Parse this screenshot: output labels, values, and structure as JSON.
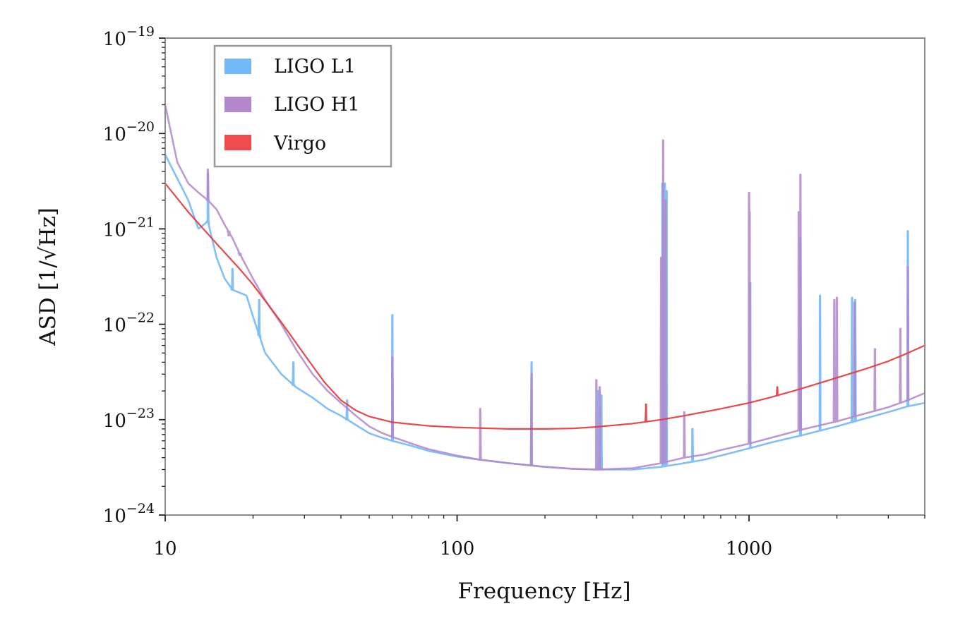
{
  "chart_data": {
    "type": "line",
    "title": "",
    "xlabel": "Frequency [Hz]",
    "ylabel": "ASD [1/√Hz]",
    "x_scale": "log",
    "y_scale": "log",
    "xlim": [
      10,
      4000
    ],
    "ylim": [
      1e-24,
      1e-19
    ],
    "x_ticks": [
      {
        "value": 10,
        "label": "10"
      },
      {
        "value": 100,
        "label": "100"
      },
      {
        "value": 1000,
        "label": "1000"
      }
    ],
    "y_ticks": [
      {
        "value": 1e-24,
        "base": "10",
        "exp": "−24"
      },
      {
        "value": 1e-23,
        "base": "10",
        "exp": "−23"
      },
      {
        "value": 1e-22,
        "base": "10",
        "exp": "−22"
      },
      {
        "value": 1e-21,
        "base": "10",
        "exp": "−21"
      },
      {
        "value": 1e-20,
        "base": "10",
        "exp": "−20"
      },
      {
        "value": 1e-19,
        "base": "10",
        "exp": "−19"
      }
    ],
    "grid": false,
    "legend_position": "top-left",
    "series": [
      {
        "name": "LIGO L1",
        "color": "#73b8f7",
        "base": [
          [
            10,
            6e-21
          ],
          [
            12,
            2e-21
          ],
          [
            13,
            1e-21
          ],
          [
            14,
            1.2e-21
          ],
          [
            15,
            5e-22
          ],
          [
            16,
            3e-22
          ],
          [
            17,
            2.3e-22
          ],
          [
            19,
            2e-22
          ],
          [
            20,
            1.2e-22
          ],
          [
            22,
            5e-23
          ],
          [
            25,
            3e-23
          ],
          [
            28,
            2.2e-23
          ],
          [
            32,
            1.7e-23
          ],
          [
            36,
            1.3e-23
          ],
          [
            40,
            1.1e-23
          ],
          [
            45,
            8.8e-24
          ],
          [
            50,
            7.2e-24
          ],
          [
            55,
            6.5e-24
          ],
          [
            60,
            6e-24
          ],
          [
            70,
            5.3e-24
          ],
          [
            80,
            4.7e-24
          ],
          [
            100,
            4.1e-24
          ],
          [
            120,
            3.8e-24
          ],
          [
            150,
            3.5e-24
          ],
          [
            200,
            3.2e-24
          ],
          [
            250,
            3.05e-24
          ],
          [
            300,
            3e-24
          ],
          [
            400,
            3e-24
          ],
          [
            500,
            3.2e-24
          ],
          [
            600,
            3.5e-24
          ],
          [
            700,
            3.8e-24
          ],
          [
            800,
            4.2e-24
          ],
          [
            1000,
            5e-24
          ],
          [
            1200,
            5.8e-24
          ],
          [
            1500,
            6.8e-24
          ],
          [
            2000,
            8.5e-24
          ],
          [
            2500,
            1.03e-23
          ],
          [
            3000,
            1.2e-23
          ],
          [
            3500,
            1.38e-23
          ],
          [
            4000,
            1.5e-23
          ]
        ],
        "peaks": [
          [
            14,
            3.8e-21
          ],
          [
            17,
            3.8e-22
          ],
          [
            21,
            1.8e-22
          ],
          [
            27.5,
            4e-23
          ],
          [
            42,
            1.6e-23
          ],
          [
            60,
            1.25e-22
          ],
          [
            180,
            4e-23
          ],
          [
            305,
            2e-23
          ],
          [
            312,
            1.8e-23
          ],
          [
            505,
            3e-21
          ],
          [
            515,
            3e-21
          ],
          [
            522,
            2.5e-21
          ],
          [
            640,
            8e-24
          ],
          [
            1010,
            2.7e-22
          ],
          [
            1500,
            8e-22
          ],
          [
            1750,
            2e-22
          ],
          [
            2255,
            1.9e-22
          ],
          [
            2310,
            1.8e-22
          ],
          [
            3500,
            9.5e-22
          ]
        ]
      },
      {
        "name": "LIGO H1",
        "color": "#b287cc",
        "base": [
          [
            10,
            2e-20
          ],
          [
            11,
            5e-21
          ],
          [
            12,
            3e-21
          ],
          [
            13,
            2.4e-21
          ],
          [
            14,
            2e-21
          ],
          [
            15,
            1.6e-21
          ],
          [
            16,
            1.1e-21
          ],
          [
            17,
            8e-22
          ],
          [
            18,
            5.5e-22
          ],
          [
            20,
            3e-22
          ],
          [
            22,
            1.8e-22
          ],
          [
            25,
            1e-22
          ],
          [
            28,
            5.5e-23
          ],
          [
            32,
            3e-23
          ],
          [
            36,
            2e-23
          ],
          [
            40,
            1.5e-23
          ],
          [
            45,
            1.1e-23
          ],
          [
            50,
            8.5e-24
          ],
          [
            55,
            7.3e-24
          ],
          [
            60,
            6.6e-24
          ],
          [
            70,
            5.6e-24
          ],
          [
            80,
            4.9e-24
          ],
          [
            100,
            4.2e-24
          ],
          [
            120,
            3.8e-24
          ],
          [
            150,
            3.5e-24
          ],
          [
            200,
            3.2e-24
          ],
          [
            250,
            3.05e-24
          ],
          [
            300,
            3e-24
          ],
          [
            400,
            3.1e-24
          ],
          [
            500,
            3.5e-24
          ],
          [
            600,
            4e-24
          ],
          [
            700,
            4.3e-24
          ],
          [
            800,
            4.8e-24
          ],
          [
            1000,
            5.6e-24
          ],
          [
            1200,
            6.5e-24
          ],
          [
            1500,
            7.8e-24
          ],
          [
            2000,
            9.6e-24
          ],
          [
            2500,
            1.16e-23
          ],
          [
            3000,
            1.35e-23
          ],
          [
            3500,
            1.6e-23
          ],
          [
            4000,
            1.9e-23
          ]
        ],
        "peaks": [
          [
            14,
            4.2e-21
          ],
          [
            16.5,
            8.5e-22
          ],
          [
            18,
            5.3e-22
          ],
          [
            60,
            4.5e-23
          ],
          [
            120,
            1.3e-23
          ],
          [
            180,
            3e-23
          ],
          [
            300,
            2.6e-23
          ],
          [
            308,
            2.2e-23
          ],
          [
            500,
            5e-22
          ],
          [
            508,
            8.5e-21
          ],
          [
            518,
            2e-21
          ],
          [
            600,
            1.2e-23
          ],
          [
            1000,
            2.4e-21
          ],
          [
            1005,
            1.5e-21
          ],
          [
            1480,
            1.5e-21
          ],
          [
            1500,
            3.7e-21
          ],
          [
            1960,
            1.8e-22
          ],
          [
            2000,
            1.9e-22
          ],
          [
            2300,
            1.7e-22
          ],
          [
            2700,
            5.5e-23
          ],
          [
            3300,
            9e-23
          ],
          [
            3500,
            4e-22
          ]
        ]
      },
      {
        "name": "Virgo",
        "color": "#e8383b",
        "base": [
          [
            10,
            3e-21
          ],
          [
            12,
            1.5e-21
          ],
          [
            15,
            7e-22
          ],
          [
            18,
            3.8e-22
          ],
          [
            20,
            2.6e-22
          ],
          [
            25,
            1.05e-22
          ],
          [
            30,
            4.8e-23
          ],
          [
            35,
            2.5e-23
          ],
          [
            40,
            1.6e-23
          ],
          [
            45,
            1.25e-23
          ],
          [
            50,
            1.08e-23
          ],
          [
            60,
            9.4e-24
          ],
          [
            80,
            8.6e-24
          ],
          [
            100,
            8.3e-24
          ],
          [
            150,
            8e-24
          ],
          [
            200,
            8e-24
          ],
          [
            250,
            8.1e-24
          ],
          [
            300,
            8.4e-24
          ],
          [
            400,
            9.1e-24
          ],
          [
            500,
            1e-23
          ],
          [
            600,
            1.1e-23
          ],
          [
            800,
            1.3e-23
          ],
          [
            1000,
            1.5e-23
          ],
          [
            1200,
            1.73e-23
          ],
          [
            1500,
            2.1e-23
          ],
          [
            2000,
            2.75e-23
          ],
          [
            2500,
            3.4e-23
          ],
          [
            3000,
            4.1e-23
          ],
          [
            3500,
            5e-23
          ],
          [
            4000,
            6e-23
          ]
        ],
        "peaks": [
          [
            444,
            1.45e-23
          ],
          [
            1250,
            2.2e-23
          ]
        ]
      }
    ]
  }
}
